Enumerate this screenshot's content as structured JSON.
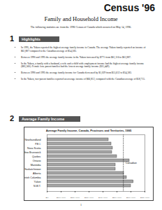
{
  "header": {
    "title": "Census '96",
    "subtitle": "Family and Household Income",
    "intro": "The following statistics are from the 1996 Census of Canada which occurred on May 14, 1996."
  },
  "sections": [
    {
      "number": "1",
      "title": "Highlights",
      "bullets": [
        "In 1995, the Yukon reported the highest average family income in Canada. The average Yukon family reported an income of $61,887 compared to the Canadian average of $54,583.",
        "Between 1990 and 1995 the average family income in the Yukon increased by $771 from $61,116 to $61,887.",
        "In the Yukon, a family with a husband, a wife and a child with employment income had the highest average family income ($83,560). Female lone parent families had the lowest average family income ($31,449).",
        "Between 1990 and 1995 the average family income for Canada decreased by $1,029 from $55,612 to $54,583.",
        "In the Yukon, two-parent families reported an average income of $66,812, compared with the Canadian average of $58,715."
      ]
    },
    {
      "number": "2",
      "title": "Average Family Income"
    }
  ],
  "chart_data": {
    "type": "bar",
    "orientation": "horizontal",
    "title": "Average Family Income, Canada, Provinces and Territories, 1995",
    "categories": [
      "Newfoundland",
      "P.E.I.",
      "Nova Scotia",
      "New Brunswick",
      "Quebec",
      "Ontario",
      "Manitoba",
      "Saskatchewan",
      "Alberta",
      "British Columbia",
      "Yukon",
      "N.W.T."
    ],
    "values": [
      44000,
      46000,
      47000,
      46500,
      50000,
      59000,
      49000,
      49000,
      55000,
      57000,
      61887,
      60000
    ],
    "color": "#a6a6a6",
    "reference": {
      "value": 54583,
      "label": "Canadian"
    },
    "xlim": [
      0,
      70000
    ],
    "xticks": [
      {
        "value": 0,
        "label": "$0"
      },
      {
        "value": 10000,
        "label": "$10,000"
      },
      {
        "value": 20000,
        "label": "$20,000"
      },
      {
        "value": 30000,
        "label": "$30,000"
      },
      {
        "value": 40000,
        "label": "$40,000"
      },
      {
        "value": 50000,
        "label": "$50,000"
      },
      {
        "value": 60000,
        "label": "$60,000"
      },
      {
        "value": 70000,
        "label": "$70,000"
      }
    ],
    "grid": false
  },
  "page_number": "1"
}
